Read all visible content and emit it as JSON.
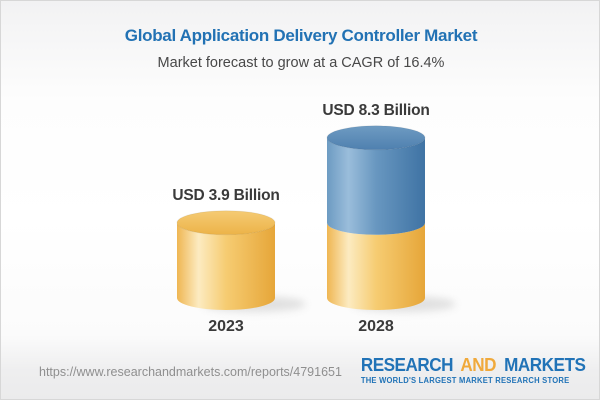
{
  "header": {
    "title": "Global Application Delivery Controller Market",
    "subtitle": "Market forecast to grow at a CAGR of 16.4%"
  },
  "chart_data": {
    "type": "bar",
    "variant": "3d-stacked-cylinder",
    "title": "Global Application Delivery Controller Market",
    "subtitle": "Market forecast to grow at a CAGR of 16.4%",
    "unit": "USD Billion",
    "cagr_percent": 16.4,
    "categories": [
      "2023",
      "2028"
    ],
    "values": [
      3.9,
      8.3
    ],
    "value_labels": [
      "USD 3.9 Billion",
      "USD 8.3 Billion"
    ],
    "bars": [
      {
        "category": "2023",
        "total": 3.9,
        "segments": [
          {
            "name": "market-size-2023",
            "value": 3.9,
            "color": "gold"
          }
        ]
      },
      {
        "category": "2028",
        "total": 8.3,
        "segments": [
          {
            "name": "base-2023-level",
            "value": 3.9,
            "color": "gold"
          },
          {
            "name": "growth-2023-to-2028",
            "value": 4.4,
            "color": "blue"
          }
        ]
      }
    ],
    "legend": "none",
    "axes": "none",
    "palette": {
      "gold": {
        "edge": "#EFB652",
        "highlight": "#FCEBC1",
        "mid": "#F6CC72",
        "dark": "#E6A639",
        "top_light": "#F5CB74",
        "top_dark": "#ECB348"
      },
      "blue": {
        "edge": "#6D9BC2",
        "highlight": "#9ABDDB",
        "mid": "#6897C0",
        "dark": "#3F73A4",
        "top_light": "#6E9BC2",
        "top_dark": "#4F80AF"
      }
    }
  },
  "footer": {
    "url": "https://www.researchandmarkets.com/reports/4791651",
    "logo": {
      "word1": "RESEARCH",
      "word2": "AND",
      "word3": "MARKETS",
      "tagline": "THE WORLD'S LARGEST MARKET RESEARCH STORE"
    }
  },
  "colors": {
    "title": "#2272B4",
    "subtitle": "#484848",
    "bar_label": "#3A3A3A",
    "category_label": "#3A3A3A",
    "url": "#8F8F8F",
    "logo_blue": "#2173B7",
    "logo_gold": "#F0A93B",
    "background_top": "#F2F2F3",
    "background_bottom": "#EBEBEC",
    "border": "#D7D7D7",
    "shadow": "#BFBFBF"
  }
}
